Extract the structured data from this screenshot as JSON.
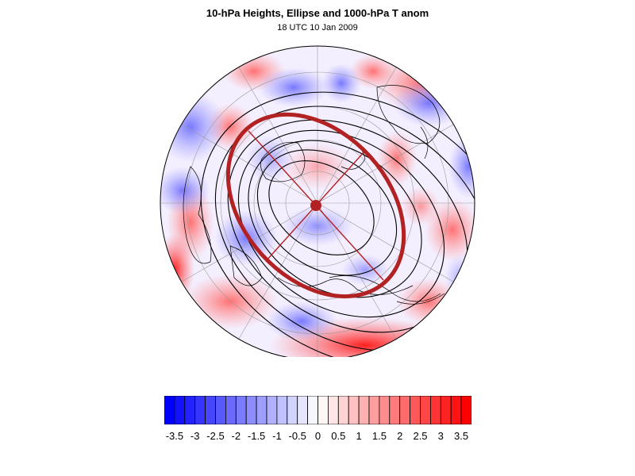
{
  "title": "10-hPa Heights, Ellipse and 1000-hPa T anom",
  "subtitle": "18 UTC 10 Jan 2009",
  "colorbar": {
    "levels": [
      -3.75,
      -3.5,
      -3.25,
      -3,
      -2.75,
      -2.5,
      -2.25,
      -2,
      -1.75,
      -1.5,
      -1.25,
      -1,
      -0.75,
      -0.5,
      -0.25,
      0,
      0.25,
      0.5,
      0.75,
      1,
      1.25,
      1.5,
      1.75,
      2,
      2.25,
      2.5,
      2.75,
      3,
      3.25,
      3.5,
      3.75
    ],
    "tick_labels": [
      "-3.5",
      "-3",
      "-2.5",
      "-2",
      "-1.5",
      "-1",
      "-0.5",
      "0",
      "0.5",
      "1",
      "1.5",
      "2",
      "2.5",
      "3",
      "3.5"
    ],
    "tick_values": [
      -3.5,
      -3,
      -2.5,
      -2,
      -1.5,
      -1,
      -0.5,
      0,
      0.5,
      1,
      1.5,
      2,
      2.5,
      3,
      3.5
    ],
    "colors": {
      "negative": "#0000ff",
      "positive": "#ff0000",
      "zero": "#ffffff",
      "ellipse": "#b22222",
      "contour": "#000000"
    }
  },
  "map": {
    "projection": "north polar stereographic",
    "graticule": "on",
    "coastlines": "on",
    "height_contours": 7
  }
}
